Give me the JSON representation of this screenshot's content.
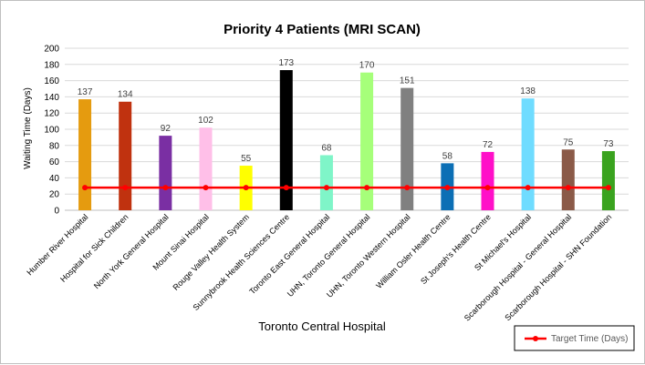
{
  "chart_data": {
    "type": "bar",
    "title": "Priority 4 Patients (MRI SCAN)",
    "xlabel": "Toronto Central Hospital",
    "ylabel": "Waiting Time (Days)",
    "ylim": [
      0,
      200
    ],
    "yticks": [
      0,
      20,
      40,
      60,
      80,
      100,
      120,
      140,
      160,
      180,
      200
    ],
    "grid": true,
    "legend_position": "bottom-right",
    "categories": [
      "Humber River Hospital",
      "Hospital for Sick Children",
      "North York General Hospital",
      "Mount Sinai Hospital",
      "Rouge Valley Health System",
      "Sunnybrook Health Sciences Centre",
      "Toronto East General Hospital",
      "UHN, Toronto General Hospital",
      "UHN, Toronto Western Hospital",
      "William Osler Health Centre",
      "St Joseph's Health Centre",
      "St Michael's Hospital",
      "Scarborough Hospital - General Hospital",
      "Scarborough Hospital - SHN Foundation"
    ],
    "values": [
      137,
      134,
      92,
      102,
      55,
      173,
      68,
      170,
      151,
      58,
      72,
      138,
      75,
      73
    ],
    "colors": [
      "#e59b0f",
      "#c0320f",
      "#7a2fa3",
      "#ffbfe8",
      "#ffff00",
      "#000000",
      "#7ff5c8",
      "#a6ff7a",
      "#808080",
      "#0c6fb5",
      "#ff10c8",
      "#6fdcff",
      "#8b5a48",
      "#3aa31f"
    ],
    "target_line": {
      "name": "Target Time (Days)",
      "value": 28,
      "color": "#ff0000"
    }
  }
}
